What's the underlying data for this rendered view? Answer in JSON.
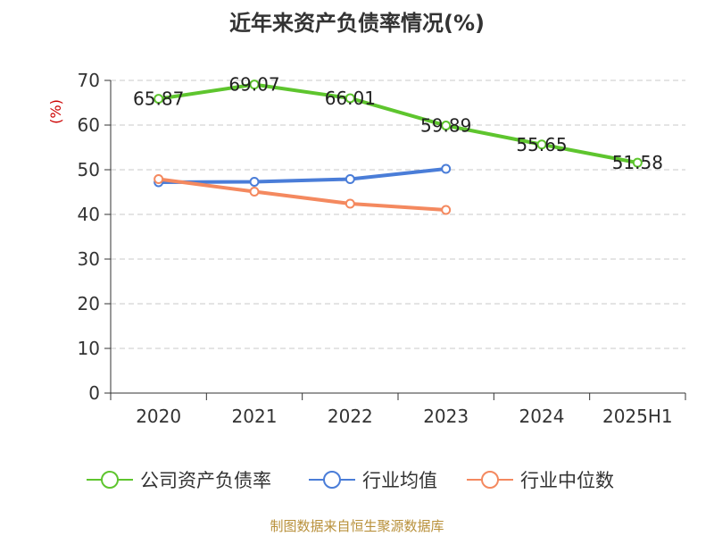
{
  "title": "近年来资产负债率情况(%)",
  "source": "制图数据来自恒生聚源数据库",
  "chart_data": {
    "type": "line",
    "categories": [
      "2020",
      "2021",
      "2022",
      "2023",
      "2024",
      "2025H1"
    ],
    "ylabel": "(%)",
    "ylim": [
      0,
      70
    ],
    "yticks": [
      0,
      10,
      20,
      30,
      40,
      50,
      60,
      70
    ],
    "grid": true,
    "legend_position": "bottom",
    "series": [
      {
        "name": "公司资产负债率",
        "color": "#5ec52e",
        "values": [
          65.87,
          69.07,
          66.01,
          59.89,
          55.65,
          51.58
        ],
        "labels": [
          "65.87",
          "69.07",
          "66.01",
          "59.89",
          "55.65",
          "51.58"
        ]
      },
      {
        "name": "行业均值",
        "color": "#4a7dd8",
        "values": [
          47.2,
          47.3,
          47.9,
          50.2,
          null,
          null
        ]
      },
      {
        "name": "行业中位数",
        "color": "#f4895f",
        "values": [
          47.9,
          45.1,
          42.4,
          41.0,
          null,
          null
        ]
      }
    ]
  }
}
